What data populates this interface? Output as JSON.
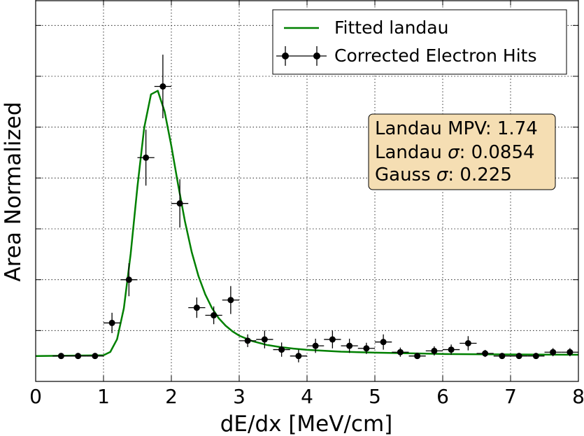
{
  "chart_data": {
    "type": "line",
    "xlabel": "dE/dx [MeV/cm]",
    "ylabel": "Area Normalized",
    "xlim": [
      0,
      8
    ],
    "ylim": [
      -0.01,
      0.14
    ],
    "x_ticks": [
      "0",
      "1",
      "2",
      "3",
      "4",
      "5",
      "6",
      "7",
      "8"
    ],
    "y_tick_values": [
      -0.01,
      0.01,
      0.03,
      0.05,
      0.07,
      0.09,
      0.11,
      0.13
    ],
    "grid": true,
    "legend_position": "top-right",
    "colors": {
      "fit_line": "#008000",
      "markers": "#000000",
      "info_box": "#f5deb3"
    },
    "series": [
      {
        "name": "Fitted landau",
        "kind": "line",
        "params": {
          "mpv": 1.74,
          "landau_sigma": 0.0854,
          "gauss_sigma": 0.225,
          "peak": 0.1056
        },
        "x": [
          0,
          1.0,
          1.1,
          1.2,
          1.3,
          1.4,
          1.5,
          1.6,
          1.7,
          1.8,
          1.9,
          2.0,
          2.1,
          2.2,
          2.3,
          2.4,
          2.5,
          2.6,
          2.7,
          2.8,
          2.9,
          3.0,
          3.2,
          3.4,
          3.6,
          3.8,
          4.0,
          4.5,
          5.0,
          6.0,
          7.0,
          8.0
        ],
        "y": [
          0.0,
          0.0003,
          0.0016,
          0.0066,
          0.0188,
          0.0401,
          0.0666,
          0.0898,
          0.1029,
          0.1043,
          0.0962,
          0.0826,
          0.0673,
          0.053,
          0.0409,
          0.0314,
          0.0242,
          0.0188,
          0.0148,
          0.0119,
          0.0097,
          0.008,
          0.0058,
          0.0044,
          0.0035,
          0.0029,
          0.0024,
          0.0017,
          0.0013,
          0.0008,
          0.0006,
          0.0005
        ]
      },
      {
        "name": "Corrected Electron Hits",
        "kind": "errorbar",
        "x": [
          0.375,
          0.625,
          0.875,
          1.125,
          1.375,
          1.625,
          1.875,
          2.125,
          2.375,
          2.625,
          2.875,
          3.125,
          3.375,
          3.625,
          3.875,
          4.125,
          4.375,
          4.625,
          4.875,
          5.125,
          5.375,
          5.625,
          5.875,
          6.125,
          6.375,
          6.625,
          6.875,
          7.125,
          7.375,
          7.625,
          7.875
        ],
        "y": [
          0.0,
          0.0,
          0.0,
          0.013,
          0.03,
          0.078,
          0.106,
          0.06,
          0.019,
          0.016,
          0.022,
          0.006,
          0.0065,
          0.0025,
          0.0,
          0.004,
          0.0065,
          0.004,
          0.003,
          0.0055,
          0.0015,
          0.0,
          0.002,
          0.0025,
          0.005,
          0.001,
          0.0,
          0.0,
          0.0,
          0.0015,
          0.0015
        ],
        "yerr": [
          0,
          0,
          0,
          0.004,
          0.0065,
          0.011,
          0.0125,
          0.0095,
          0.004,
          0.0035,
          0.0055,
          0.0025,
          0.0035,
          0.0028,
          0.0025,
          0.0028,
          0.0035,
          0.0028,
          0.0022,
          0.003,
          0.0018,
          0.0012,
          0.0018,
          0.002,
          0.0028,
          0.0014,
          0.0009,
          0.0009,
          0.0009,
          0.0016,
          0.0016
        ],
        "xerr": 0.125
      }
    ],
    "legend": {
      "line_label": "Fitted landau",
      "points_label": "Corrected Electron Hits"
    },
    "info_box": {
      "line1_prefix": "Landau MPV: ",
      "line1_value": "1.74",
      "line2_prefix": "Landau ",
      "line2_symbol": "σ",
      "line2_suffix": ": 0.0854",
      "line3_prefix": "Gauss ",
      "line3_symbol": "σ",
      "line3_suffix": ": 0.225"
    }
  }
}
